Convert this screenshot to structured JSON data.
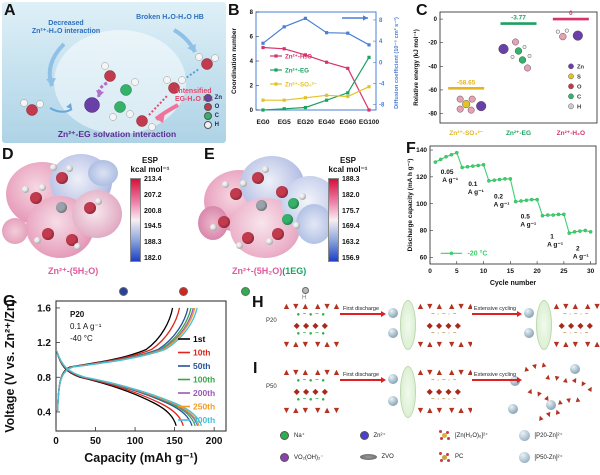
{
  "colors": {
    "pink": "#d6336c",
    "green": "#1aa260",
    "yellow": "#e3b520",
    "blue": "#4a7fd4",
    "purple": "#6b3fa8",
    "red": "#e02020",
    "f_green": "#3fd06e"
  },
  "panelA": {
    "label": "A",
    "text_decreased1": "Decreased",
    "text_decreased2": "Zn²⁺-H₂O interaction",
    "text_broken": "Broken H₂O-H₂O HB",
    "text_intensified1": "Intensified",
    "text_intensified2": "EG-H₂O HB",
    "title": "Zn²⁺-EG solvation interaction",
    "legend": [
      {
        "label": "Zn",
        "color": "#6b3fa8"
      },
      {
        "label": "O",
        "color": "#c23a4e"
      },
      {
        "label": "C",
        "color": "#35b26a"
      },
      {
        "label": "H",
        "color": "#f2f2f2"
      }
    ]
  },
  "panelB": {
    "label": "B"
  },
  "panelC": {
    "label": "C",
    "legend": [
      {
        "label": "Zn",
        "color": "#6b3fa8"
      },
      {
        "label": "S",
        "color": "#e3c229"
      },
      {
        "label": "O",
        "color": "#c23a4e"
      },
      {
        "label": "C",
        "color": "#35b26a"
      },
      {
        "label": "H",
        "color": "#cccccc"
      }
    ]
  },
  "panelD": {
    "label": "D",
    "cb_title": "ESP",
    "cb_unit": "kcal mol⁻¹",
    "ticks": [
      "213.4",
      "207.2",
      "200.8",
      "194.5",
      "188.3",
      "182.0"
    ],
    "caption": "Zn²⁺-(5H₂O)"
  },
  "panelE": {
    "label": "E",
    "cb_title": "ESP",
    "cb_unit": "kcal mol⁻¹",
    "ticks": [
      "188.3",
      "182.0",
      "175.7",
      "169.4",
      "163.2",
      "156.9"
    ],
    "caption": "Zn²⁺-(5H₂O)",
    "caption_eg": "(1EG)"
  },
  "panelF": {
    "label": "F"
  },
  "panelG": {
    "label": "G"
  },
  "panelH": {
    "label": "H",
    "sample": "P20",
    "arrow1": "First discharge",
    "arrow2": "Extensive cycling"
  },
  "panelI": {
    "label": "I",
    "sample": "P50",
    "arrow1": "First discharge",
    "arrow2": "Extensive cycling"
  },
  "atom_strip": {
    "dots": [
      {
        "color": "#2a3f9e"
      },
      {
        "color": "#d6251e"
      },
      {
        "color": "#2fae4e"
      },
      {
        "color": "#b9b9b9"
      }
    ],
    "h_label": "H"
  },
  "crystal": {
    "row1": "▲▼▲ ▲▼▲",
    "row2_pristine": "● ~ ● ~ ●",
    "row2_cycled": "~ · ~ · ~",
    "row3": "◆ ◆ ◆ ◆",
    "row4": "▼▲▼ ▼▲▼"
  },
  "bottom_legend": {
    "items": [
      {
        "label": "Na⁺",
        "icon": "dot",
        "color": "#2fae4e"
      },
      {
        "label": "Zn²⁺",
        "icon": "dot",
        "color": "#4b3fd0"
      },
      {
        "label": "[Zn(H₂O)₆]²⁺",
        "icon": "cluster",
        "color": "#d9b23a"
      },
      {
        "label": "[P20-Zn]²⁺",
        "icon": "sphere",
        "color": "#9fb8c9"
      },
      {
        "label": "VO₂(OH)₂⁻",
        "icon": "dot",
        "color": "#8e3fae"
      },
      {
        "label": "ZVO",
        "icon": "ellipse",
        "color": "#777777"
      },
      {
        "label": "PC",
        "icon": "molecule",
        "color": "#caa23a"
      },
      {
        "label": "[P50-Zn]²⁺",
        "icon": "sphere",
        "color": "#9fb8c9"
      }
    ]
  },
  "chart_data": [
    {
      "id": "B",
      "type": "line",
      "categories": [
        "EG0",
        "EG5",
        "EG20",
        "EG40",
        "EG60",
        "EG100"
      ],
      "ylabel_left": "Coordination number",
      "yticks_left": [
        0,
        2,
        4,
        6,
        8
      ],
      "ylim_left": [
        0,
        8
      ],
      "ylabel_right": "Diffusion coefficient (10⁻⁵ cm² s⁻¹)",
      "yticks_right": [
        8,
        4,
        0,
        -4,
        -8
      ],
      "ylim_right": [
        -9,
        9.5
      ],
      "grid": false,
      "legend_position": "middle-left",
      "series": [
        {
          "name": "Zn²⁺-H₂O",
          "color": "#d6336c",
          "axis": "left",
          "values": [
            5.1,
            5.0,
            4.5,
            3.9,
            3.4,
            0.0
          ]
        },
        {
          "name": "Zn²⁺-EG",
          "color": "#1aa260",
          "axis": "left",
          "values": [
            0.0,
            0.1,
            0.2,
            0.8,
            1.4,
            4.3
          ]
        },
        {
          "name": "Zn²⁺-SO₄²⁻",
          "color": "#e3c229",
          "axis": "left",
          "values": [
            0.8,
            0.8,
            1.0,
            1.2,
            1.1,
            1.9
          ]
        },
        {
          "name": "Diffusion coefficient",
          "color": "#4a7fd4",
          "axis": "right",
          "values": [
            3.6,
            6.7,
            8.3,
            5.6,
            5.5,
            3.3
          ]
        }
      ]
    },
    {
      "id": "C",
      "type": "level",
      "ylabel": "Relative energy (kJ mol⁻¹)",
      "yticks": [
        0,
        -20,
        -40,
        -60,
        -80
      ],
      "ylim": [
        -88,
        6
      ],
      "categories": [
        {
          "label": "Zn²⁺-SO₄²⁻",
          "color": "#e3b520",
          "value": -58.65,
          "value_label": "-58.65"
        },
        {
          "label": "Zn²⁺-EG",
          "color": "#1aa260",
          "value": -3.77,
          "value_label": "-3.77"
        },
        {
          "label": "Zn²⁺-H₂O",
          "color": "#d6336c",
          "value": 0,
          "value_label": "0"
        }
      ]
    },
    {
      "id": "F",
      "type": "line",
      "xlabel": "Cycle number",
      "xticks": [
        0,
        5,
        10,
        15,
        20,
        25,
        30
      ],
      "xlim": [
        0,
        31
      ],
      "ylabel": "Discharge capacity (mA h g⁻¹)",
      "yticks": [
        140,
        120,
        100,
        80,
        60
      ],
      "ylim": [
        55,
        143
      ],
      "legend": "-20 °C",
      "color": "#3fd06e",
      "x": [
        1,
        2,
        3,
        4,
        5,
        6,
        7,
        8,
        9,
        10,
        11,
        12,
        13,
        14,
        15,
        16,
        17,
        18,
        19,
        20,
        21,
        22,
        23,
        24,
        25,
        26,
        27,
        28,
        29,
        30
      ],
      "values": [
        131,
        133,
        135,
        136.5,
        138,
        127,
        127.5,
        128,
        128.5,
        129,
        117,
        117.5,
        118,
        118.5,
        118.5,
        101.5,
        102,
        102.5,
        103,
        103,
        91,
        91.5,
        91.5,
        92,
        92,
        78,
        79,
        79.5,
        80,
        79
      ],
      "rate_labels": [
        {
          "line1": "0.05",
          "line2": "A g⁻¹",
          "x": 3.2,
          "y": 122
        },
        {
          "line1": "0.1",
          "line2": "A g⁻¹",
          "x": 8,
          "y": 113
        },
        {
          "line1": "0.2",
          "line2": "A g⁻¹",
          "x": 12.8,
          "y": 104
        },
        {
          "line1": "0.5",
          "line2": "A g⁻¹",
          "x": 17.8,
          "y": 89
        },
        {
          "line1": "1",
          "line2": "A g⁻¹",
          "x": 22.8,
          "y": 74
        },
        {
          "line1": "2",
          "line2": "A g⁻¹",
          "x": 27.6,
          "y": 65
        }
      ]
    },
    {
      "id": "G",
      "type": "cycling-curves",
      "xlabel": "Capacity (mAh g⁻¹)",
      "xticks": [
        0,
        50,
        100,
        150,
        200
      ],
      "xlim": [
        0,
        215
      ],
      "ylabel": "Voltage (V vs. Zn²⁺/Zn)",
      "yticks": [
        0.4,
        0.8,
        1.2,
        1.6
      ],
      "ylim": [
        0.18,
        1.68
      ],
      "annotations": [
        "P20",
        "0.1 A g⁻¹",
        "-40 °C"
      ],
      "series": [
        {
          "name": "1st",
          "color": "#000000",
          "capacity": 152
        },
        {
          "name": "10th",
          "color": "#e0251b",
          "capacity": 161
        },
        {
          "name": "50th",
          "color": "#27549c",
          "capacity": 172
        },
        {
          "name": "100th",
          "color": "#3aa648",
          "capacity": 176
        },
        {
          "name": "200th",
          "color": "#9b59b6",
          "capacity": 179
        },
        {
          "name": "250th",
          "color": "#f39c26",
          "capacity": 181
        },
        {
          "name": "300th",
          "color": "#45c0dc",
          "capacity": 184
        }
      ]
    }
  ]
}
